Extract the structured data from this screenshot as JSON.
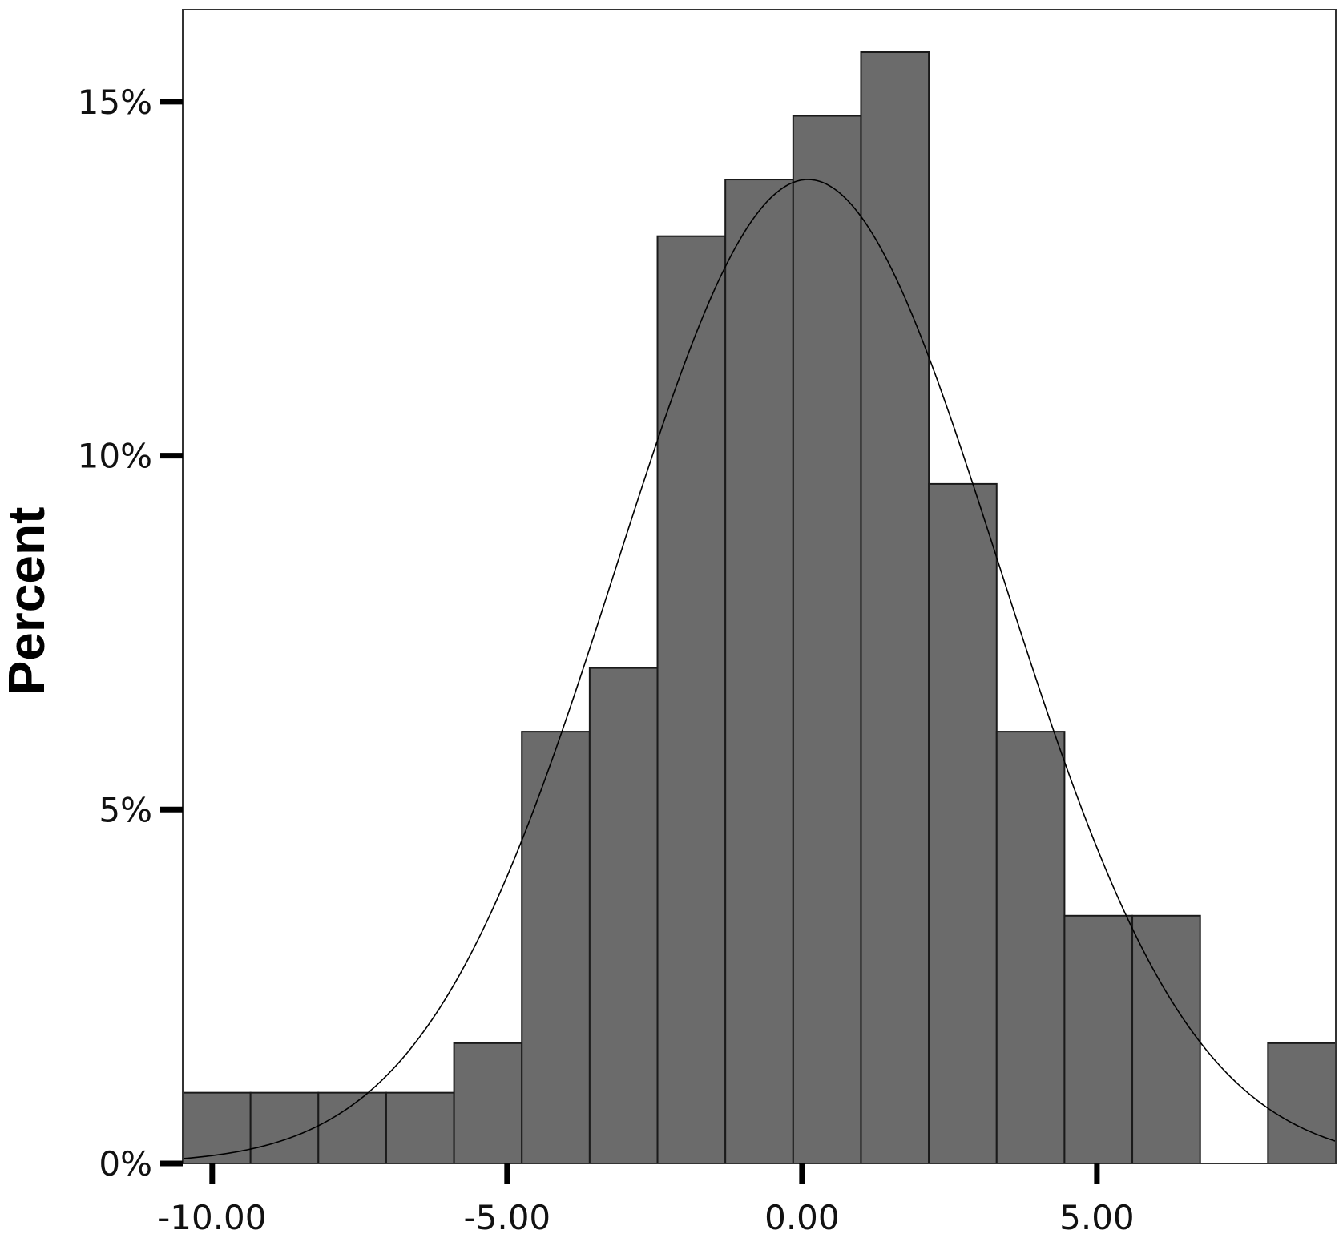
{
  "chart_data": {
    "type": "bar",
    "subtype": "histogram-with-normal-curve",
    "ylabel": "Percent",
    "xlabel": "",
    "bin_width": 1.15,
    "bins": [
      {
        "x0": -10.5,
        "x1": -9.35,
        "value": 1.0
      },
      {
        "x0": -9.35,
        "x1": -8.2,
        "value": 1.0
      },
      {
        "x0": -8.2,
        "x1": -7.05,
        "value": 1.0
      },
      {
        "x0": -7.05,
        "x1": -5.9,
        "value": 1.0
      },
      {
        "x0": -5.9,
        "x1": -4.75,
        "value": 1.7
      },
      {
        "x0": -4.75,
        "x1": -3.6,
        "value": 6.1
      },
      {
        "x0": -3.6,
        "x1": -2.45,
        "value": 7.0
      },
      {
        "x0": -2.45,
        "x1": -1.3,
        "value": 13.1
      },
      {
        "x0": -1.3,
        "x1": -0.15,
        "value": 13.9
      },
      {
        "x0": -0.15,
        "x1": 1.0,
        "value": 14.8
      },
      {
        "x0": 1.0,
        "x1": 2.15,
        "value": 15.7
      },
      {
        "x0": 2.15,
        "x1": 3.3,
        "value": 9.6
      },
      {
        "x0": 3.3,
        "x1": 4.45,
        "value": 6.1
      },
      {
        "x0": 4.45,
        "x1": 5.6,
        "value": 3.5
      },
      {
        "x0": 5.6,
        "x1": 6.75,
        "value": 3.5
      },
      {
        "x0": 6.75,
        "x1": 7.9,
        "value": 0.0
      },
      {
        "x0": 7.9,
        "x1": 9.05,
        "value": 1.7
      }
    ],
    "normal_curve": {
      "mean": 0.1,
      "sd": 3.25,
      "peak": 13.9
    },
    "xlim": [
      -10.5,
      9.05
    ],
    "ylim": [
      0,
      16.3
    ],
    "x_ticks": [
      {
        "value": -10,
        "label": "-10.00"
      },
      {
        "value": -5,
        "label": "-5.00"
      },
      {
        "value": 0,
        "label": "0.00"
      },
      {
        "value": 5,
        "label": "5.00"
      }
    ],
    "y_ticks": [
      {
        "value": 0,
        "label": "0%"
      },
      {
        "value": 5,
        "label": "5%"
      },
      {
        "value": 10,
        "label": "10%"
      },
      {
        "value": 15,
        "label": "15%"
      }
    ],
    "grid": false,
    "legend": "none",
    "colors": {
      "bar_fill": "#6b6b6b",
      "bar_stroke": "#1a1a1a",
      "curve": "#000000",
      "frame": "#333333",
      "tick": "#000000"
    }
  }
}
